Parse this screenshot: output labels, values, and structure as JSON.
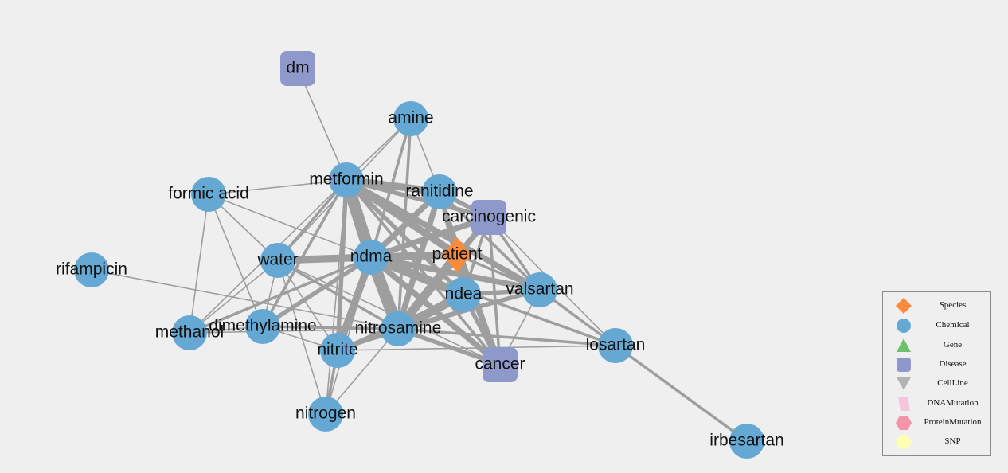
{
  "colors": {
    "Species": "#fe8a3c",
    "Chemical": "#64a8d3",
    "Gene": "#6ec06d",
    "Disease": "#8e98cb",
    "CellLine": "#b3b3b3",
    "DNAMutation": "#f7c4de",
    "ProteinMutation": "#f394a9",
    "SNP": "#ffffb2",
    "edge": "#9e9e9e"
  },
  "legend": {
    "items": [
      {
        "type": "Species",
        "label": "Species",
        "shape": "diamond-icon"
      },
      {
        "type": "Chemical",
        "label": "Chemical",
        "shape": "circle-icon"
      },
      {
        "type": "Gene",
        "label": "Gene",
        "shape": "triangle-icon"
      },
      {
        "type": "Disease",
        "label": "Disease",
        "shape": "rounded-square-icon"
      },
      {
        "type": "CellLine",
        "label": "CellLine",
        "shape": "down-triangle-icon"
      },
      {
        "type": "DNAMutation",
        "label": "DNAMutation",
        "shape": "parallelogram-icon"
      },
      {
        "type": "ProteinMutation",
        "label": "ProteinMutation",
        "shape": "hexagon-icon"
      },
      {
        "type": "SNP",
        "label": "SNP",
        "shape": "circle-icon"
      }
    ]
  },
  "graph": {
    "nodes": [
      {
        "id": "dm",
        "label": "dm",
        "type": "Disease"
      },
      {
        "id": "amine",
        "label": "amine",
        "type": "Chemical"
      },
      {
        "id": "metformin",
        "label": "metformin",
        "type": "Chemical"
      },
      {
        "id": "ranitidine",
        "label": "ranitidine",
        "type": "Chemical"
      },
      {
        "id": "formic_acid",
        "label": "formic acid",
        "type": "Chemical"
      },
      {
        "id": "carcinogenic",
        "label": "carcinogenic",
        "type": "Disease"
      },
      {
        "id": "patient",
        "label": "patient",
        "type": "Species"
      },
      {
        "id": "water",
        "label": "water",
        "type": "Chemical"
      },
      {
        "id": "ndma",
        "label": "ndma",
        "type": "Chemical"
      },
      {
        "id": "rifampicin",
        "label": "rifampicin",
        "type": "Chemical"
      },
      {
        "id": "ndea",
        "label": "ndea",
        "type": "Chemical"
      },
      {
        "id": "valsartan",
        "label": "valsartan",
        "type": "Chemical"
      },
      {
        "id": "methanol",
        "label": "methanol",
        "type": "Chemical"
      },
      {
        "id": "dimethylamine",
        "label": "dimethylamine",
        "type": "Chemical"
      },
      {
        "id": "nitrosamine",
        "label": "nitrosamine",
        "type": "Chemical"
      },
      {
        "id": "nitrite",
        "label": "nitrite",
        "type": "Chemical"
      },
      {
        "id": "losartan",
        "label": "losartan",
        "type": "Chemical"
      },
      {
        "id": "cancer",
        "label": "cancer",
        "type": "Disease"
      },
      {
        "id": "nitrogen",
        "label": "nitrogen",
        "type": "Chemical"
      },
      {
        "id": "irbesartan",
        "label": "irbesartan",
        "type": "Chemical"
      }
    ],
    "edges": [
      {
        "source": "dm",
        "target": "metformin",
        "weight": 1
      },
      {
        "source": "amine",
        "target": "metformin",
        "weight": 1
      },
      {
        "source": "amine",
        "target": "ranitidine",
        "weight": 1
      },
      {
        "source": "amine",
        "target": "ndma",
        "weight": 2
      },
      {
        "source": "amine",
        "target": "nitrosamine",
        "weight": 2
      },
      {
        "source": "amine",
        "target": "water",
        "weight": 1
      },
      {
        "source": "formic_acid",
        "target": "metformin",
        "weight": 1
      },
      {
        "source": "formic_acid",
        "target": "methanol",
        "weight": 1
      },
      {
        "source": "formic_acid",
        "target": "water",
        "weight": 1
      },
      {
        "source": "formic_acid",
        "target": "ndma",
        "weight": 1
      },
      {
        "source": "formic_acid",
        "target": "dimethylamine",
        "weight": 1
      },
      {
        "source": "metformin",
        "target": "ndma",
        "weight": 8
      },
      {
        "source": "metformin",
        "target": "nitrosamine",
        "weight": 6
      },
      {
        "source": "metformin",
        "target": "ranitidine",
        "weight": 5
      },
      {
        "source": "metformin",
        "target": "carcinogenic",
        "weight": 3
      },
      {
        "source": "metformin",
        "target": "patient",
        "weight": 5
      },
      {
        "source": "metformin",
        "target": "ndea",
        "weight": 3
      },
      {
        "source": "metformin",
        "target": "valsartan",
        "weight": 4
      },
      {
        "source": "metformin",
        "target": "cancer",
        "weight": 2
      },
      {
        "source": "metformin",
        "target": "water",
        "weight": 2
      },
      {
        "source": "metformin",
        "target": "methanol",
        "weight": 1
      },
      {
        "source": "metformin",
        "target": "dimethylamine",
        "weight": 2
      },
      {
        "source": "metformin",
        "target": "nitrite",
        "weight": 3
      },
      {
        "source": "metformin",
        "target": "nitrogen",
        "weight": 1
      },
      {
        "source": "ranitidine",
        "target": "ndma",
        "weight": 4
      },
      {
        "source": "ranitidine",
        "target": "nitrosamine",
        "weight": 4
      },
      {
        "source": "ranitidine",
        "target": "carcinogenic",
        "weight": 3
      },
      {
        "source": "ranitidine",
        "target": "patient",
        "weight": 3
      },
      {
        "source": "ranitidine",
        "target": "ndea",
        "weight": 2
      },
      {
        "source": "ranitidine",
        "target": "valsartan",
        "weight": 2
      },
      {
        "source": "ranitidine",
        "target": "cancer",
        "weight": 2
      },
      {
        "source": "carcinogenic",
        "target": "ndma",
        "weight": 4
      },
      {
        "source": "carcinogenic",
        "target": "nitrosamine",
        "weight": 4
      },
      {
        "source": "carcinogenic",
        "target": "patient",
        "weight": 2
      },
      {
        "source": "carcinogenic",
        "target": "valsartan",
        "weight": 2
      },
      {
        "source": "carcinogenic",
        "target": "cancer",
        "weight": 2
      },
      {
        "source": "carcinogenic",
        "target": "losartan",
        "weight": 1
      },
      {
        "source": "carcinogenic",
        "target": "ndea",
        "weight": 2
      },
      {
        "source": "patient",
        "target": "ndma",
        "weight": 5
      },
      {
        "source": "patient",
        "target": "nitrosamine",
        "weight": 6
      },
      {
        "source": "patient",
        "target": "ndea",
        "weight": 3
      },
      {
        "source": "patient",
        "target": "valsartan",
        "weight": 2
      },
      {
        "source": "patient",
        "target": "cancer",
        "weight": 4
      },
      {
        "source": "patient",
        "target": "water",
        "weight": 1
      },
      {
        "source": "water",
        "target": "ndma",
        "weight": 5
      },
      {
        "source": "water",
        "target": "nitrosamine",
        "weight": 2
      },
      {
        "source": "water",
        "target": "methanol",
        "weight": 1
      },
      {
        "source": "water",
        "target": "dimethylamine",
        "weight": 1
      },
      {
        "source": "water",
        "target": "nitrite",
        "weight": 1
      },
      {
        "source": "water",
        "target": "nitrogen",
        "weight": 1
      },
      {
        "source": "water",
        "target": "cancer",
        "weight": 1
      },
      {
        "source": "ndma",
        "target": "ndea",
        "weight": 6
      },
      {
        "source": "ndma",
        "target": "nitrosamine",
        "weight": 8
      },
      {
        "source": "ndma",
        "target": "valsartan",
        "weight": 4
      },
      {
        "source": "ndma",
        "target": "cancer",
        "weight": 4
      },
      {
        "source": "ndma",
        "target": "dimethylamine",
        "weight": 3
      },
      {
        "source": "ndma",
        "target": "methanol",
        "weight": 2
      },
      {
        "source": "ndma",
        "target": "nitrite",
        "weight": 5
      },
      {
        "source": "ndma",
        "target": "nitrogen",
        "weight": 1
      },
      {
        "source": "ndma",
        "target": "losartan",
        "weight": 2
      },
      {
        "source": "rifampicin",
        "target": "nitrosamine",
        "weight": 1
      },
      {
        "source": "ndea",
        "target": "nitrosamine",
        "weight": 6
      },
      {
        "source": "ndea",
        "target": "valsartan",
        "weight": 3
      },
      {
        "source": "ndea",
        "target": "cancer",
        "weight": 3
      },
      {
        "source": "ndea",
        "target": "nitrite",
        "weight": 2
      },
      {
        "source": "valsartan",
        "target": "nitrosamine",
        "weight": 3
      },
      {
        "source": "valsartan",
        "target": "losartan",
        "weight": 2
      },
      {
        "source": "valsartan",
        "target": "cancer",
        "weight": 1
      },
      {
        "source": "valsartan",
        "target": "nitrite",
        "weight": 1
      },
      {
        "source": "methanol",
        "target": "dimethylamine",
        "weight": 1
      },
      {
        "source": "methanol",
        "target": "nitrosamine",
        "weight": 1
      },
      {
        "source": "dimethylamine",
        "target": "nitrosamine",
        "weight": 2
      },
      {
        "source": "dimethylamine",
        "target": "nitrite",
        "weight": 1
      },
      {
        "source": "nitrosamine",
        "target": "nitrite",
        "weight": 3
      },
      {
        "source": "nitrosamine",
        "target": "losartan",
        "weight": 2
      },
      {
        "source": "nitrosamine",
        "target": "cancer",
        "weight": 3
      },
      {
        "source": "nitrosamine",
        "target": "nitrogen",
        "weight": 1
      },
      {
        "source": "nitrite",
        "target": "nitrogen",
        "weight": 2
      },
      {
        "source": "nitrite",
        "target": "losartan",
        "weight": 1
      },
      {
        "source": "losartan",
        "target": "irbesartan",
        "weight": 2
      }
    ]
  }
}
